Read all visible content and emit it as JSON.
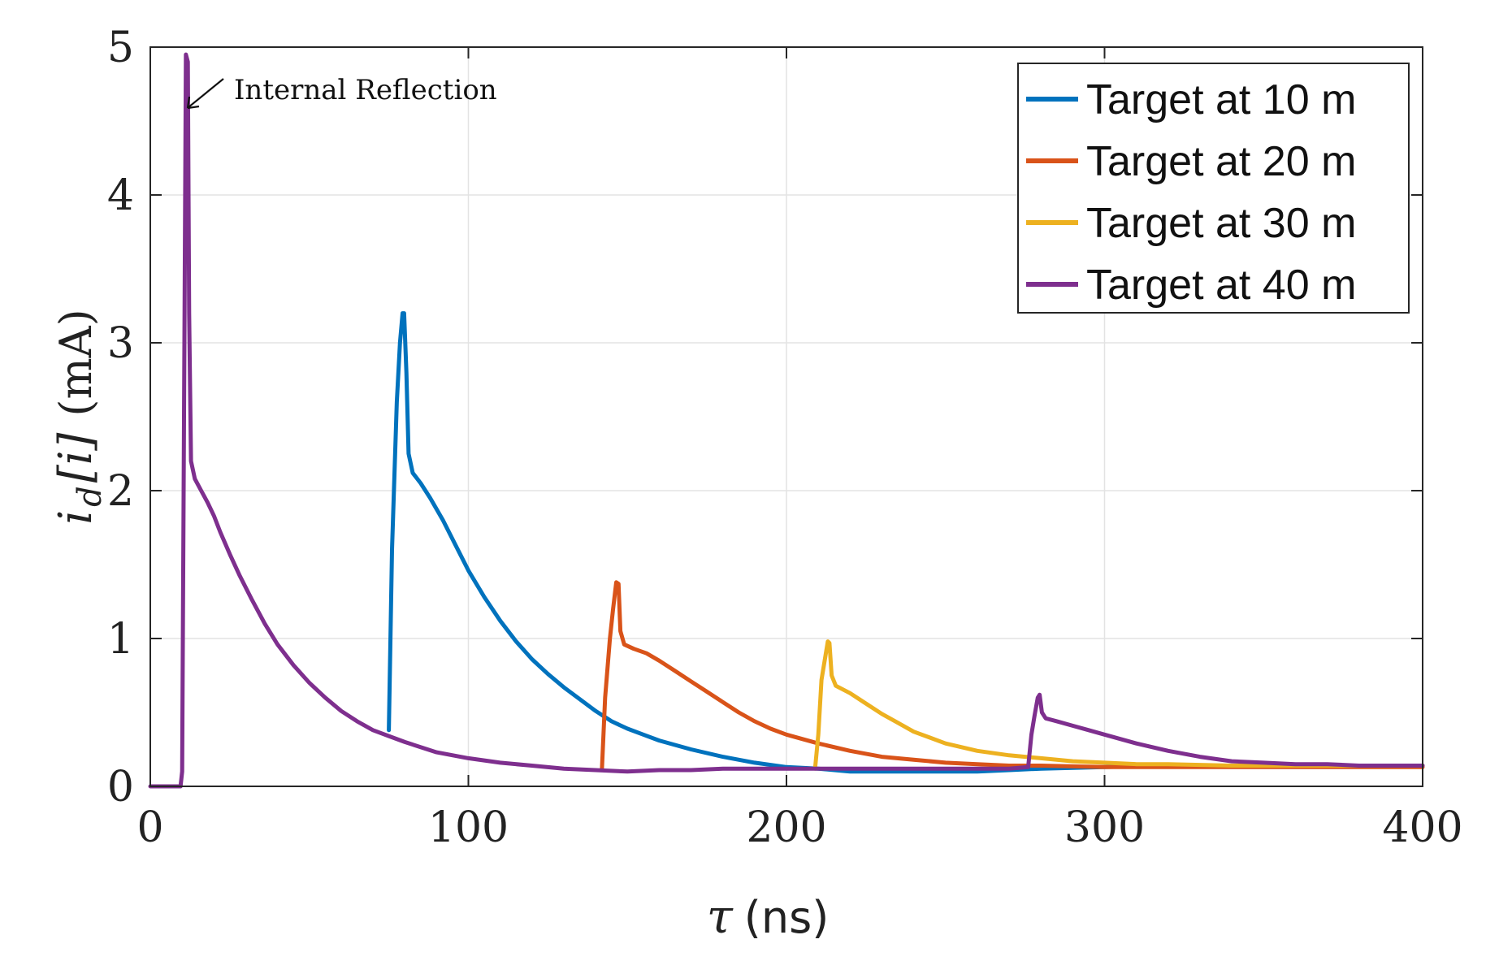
{
  "chart_data": {
    "type": "line",
    "title": "",
    "xlabel": {
      "symbol": "τ",
      "unit": "(ns)"
    },
    "ylabel": {
      "base": "i",
      "subscript": "d",
      "index": "[i]",
      "unit": "(mA)"
    },
    "xlim": [
      0,
      400
    ],
    "ylim": [
      0,
      5
    ],
    "xticks": [
      0,
      100,
      200,
      300,
      400
    ],
    "yticks": [
      0,
      1,
      2,
      3,
      4,
      5
    ],
    "grid": true,
    "legend_position": "top-right",
    "annotation": {
      "text": "Internal Reflection",
      "target": [
        11,
        4.6
      ]
    },
    "series": [
      {
        "name": "Target at 10 m",
        "color": "#0072BD",
        "points": [
          [
            75,
            0.38
          ],
          [
            76,
            1.6
          ],
          [
            77.5,
            2.6
          ],
          [
            78.5,
            3.0
          ],
          [
            79.3,
            3.2
          ],
          [
            79.8,
            3.2
          ],
          [
            80.5,
            2.8
          ],
          [
            81.2,
            2.25
          ],
          [
            82.5,
            2.12
          ],
          [
            85,
            2.05
          ],
          [
            88,
            1.95
          ],
          [
            92,
            1.8
          ],
          [
            96,
            1.63
          ],
          [
            100,
            1.46
          ],
          [
            105,
            1.28
          ],
          [
            110,
            1.12
          ],
          [
            115,
            0.98
          ],
          [
            120,
            0.86
          ],
          [
            125,
            0.76
          ],
          [
            130,
            0.67
          ],
          [
            135,
            0.59
          ],
          [
            140,
            0.51
          ],
          [
            145,
            0.44
          ],
          [
            150,
            0.39
          ],
          [
            155,
            0.35
          ],
          [
            160,
            0.31
          ],
          [
            170,
            0.25
          ],
          [
            180,
            0.2
          ],
          [
            190,
            0.16
          ],
          [
            200,
            0.13
          ],
          [
            210,
            0.12
          ],
          [
            220,
            0.1
          ],
          [
            230,
            0.1
          ],
          [
            240,
            0.1
          ],
          [
            250,
            0.1
          ],
          [
            260,
            0.1
          ],
          [
            270,
            0.11
          ],
          [
            280,
            0.12
          ],
          [
            300,
            0.13
          ],
          [
            320,
            0.14
          ],
          [
            340,
            0.14
          ],
          [
            360,
            0.14
          ],
          [
            380,
            0.14
          ],
          [
            400,
            0.14
          ]
        ]
      },
      {
        "name": "Target at 20 m",
        "color": "#D95319",
        "points": [
          [
            142,
            0.12
          ],
          [
            143,
            0.6
          ],
          [
            144.5,
            1.0
          ],
          [
            145.5,
            1.2
          ],
          [
            146.5,
            1.38
          ],
          [
            147.2,
            1.37
          ],
          [
            147.8,
            1.05
          ],
          [
            149,
            0.96
          ],
          [
            152,
            0.93
          ],
          [
            156,
            0.9
          ],
          [
            160,
            0.85
          ],
          [
            165,
            0.78
          ],
          [
            170,
            0.71
          ],
          [
            175,
            0.64
          ],
          [
            180,
            0.57
          ],
          [
            185,
            0.5
          ],
          [
            190,
            0.44
          ],
          [
            195,
            0.39
          ],
          [
            200,
            0.35
          ],
          [
            210,
            0.29
          ],
          [
            220,
            0.24
          ],
          [
            230,
            0.2
          ],
          [
            240,
            0.18
          ],
          [
            250,
            0.16
          ],
          [
            260,
            0.15
          ],
          [
            270,
            0.14
          ],
          [
            280,
            0.14
          ],
          [
            300,
            0.13
          ],
          [
            320,
            0.13
          ],
          [
            340,
            0.13
          ],
          [
            360,
            0.13
          ],
          [
            380,
            0.13
          ],
          [
            400,
            0.13
          ]
        ]
      },
      {
        "name": "Target at 30 m",
        "color": "#EDB120",
        "points": [
          [
            209,
            0.12
          ],
          [
            210,
            0.35
          ],
          [
            211,
            0.72
          ],
          [
            212,
            0.85
          ],
          [
            213,
            0.98
          ],
          [
            213.5,
            0.97
          ],
          [
            214.2,
            0.75
          ],
          [
            215.5,
            0.68
          ],
          [
            220,
            0.63
          ],
          [
            225,
            0.56
          ],
          [
            230,
            0.49
          ],
          [
            235,
            0.43
          ],
          [
            240,
            0.37
          ],
          [
            245,
            0.33
          ],
          [
            250,
            0.29
          ],
          [
            260,
            0.24
          ],
          [
            270,
            0.21
          ],
          [
            280,
            0.19
          ],
          [
            290,
            0.17
          ],
          [
            300,
            0.16
          ],
          [
            310,
            0.15
          ],
          [
            320,
            0.15
          ],
          [
            340,
            0.14
          ],
          [
            360,
            0.14
          ],
          [
            380,
            0.14
          ],
          [
            400,
            0.14
          ]
        ]
      },
      {
        "name": "Target at 40 m",
        "color": "#7E2F8E",
        "points": [
          [
            0,
            0.0
          ],
          [
            9.5,
            0.0
          ],
          [
            10,
            0.1
          ],
          [
            10.6,
            2.5
          ],
          [
            11.2,
            4.95
          ],
          [
            11.8,
            4.9
          ],
          [
            12.2,
            3.2
          ],
          [
            12.8,
            2.2
          ],
          [
            14,
            2.08
          ],
          [
            16,
            2.0
          ],
          [
            18,
            1.92
          ],
          [
            20,
            1.83
          ],
          [
            22,
            1.72
          ],
          [
            25,
            1.57
          ],
          [
            28,
            1.43
          ],
          [
            32,
            1.26
          ],
          [
            36,
            1.1
          ],
          [
            40,
            0.96
          ],
          [
            45,
            0.82
          ],
          [
            50,
            0.7
          ],
          [
            55,
            0.6
          ],
          [
            60,
            0.51
          ],
          [
            65,
            0.44
          ],
          [
            70,
            0.38
          ],
          [
            75,
            0.34
          ],
          [
            80,
            0.3
          ],
          [
            90,
            0.23
          ],
          [
            100,
            0.19
          ],
          [
            110,
            0.16
          ],
          [
            120,
            0.14
          ],
          [
            130,
            0.12
          ],
          [
            140,
            0.11
          ],
          [
            150,
            0.1
          ],
          [
            160,
            0.11
          ],
          [
            170,
            0.11
          ],
          [
            180,
            0.12
          ],
          [
            190,
            0.12
          ],
          [
            200,
            0.12
          ],
          [
            210,
            0.12
          ],
          [
            220,
            0.12
          ],
          [
            230,
            0.12
          ],
          [
            240,
            0.12
          ],
          [
            250,
            0.12
          ],
          [
            260,
            0.12
          ],
          [
            270,
            0.12
          ],
          [
            276,
            0.13
          ],
          [
            277,
            0.35
          ],
          [
            278,
            0.48
          ],
          [
            279,
            0.6
          ],
          [
            279.6,
            0.62
          ],
          [
            280.3,
            0.5
          ],
          [
            281.5,
            0.46
          ],
          [
            285,
            0.44
          ],
          [
            290,
            0.41
          ],
          [
            295,
            0.38
          ],
          [
            300,
            0.35
          ],
          [
            310,
            0.29
          ],
          [
            320,
            0.24
          ],
          [
            330,
            0.2
          ],
          [
            340,
            0.17
          ],
          [
            350,
            0.16
          ],
          [
            360,
            0.15
          ],
          [
            370,
            0.15
          ],
          [
            380,
            0.14
          ],
          [
            390,
            0.14
          ],
          [
            400,
            0.14
          ]
        ]
      }
    ]
  }
}
